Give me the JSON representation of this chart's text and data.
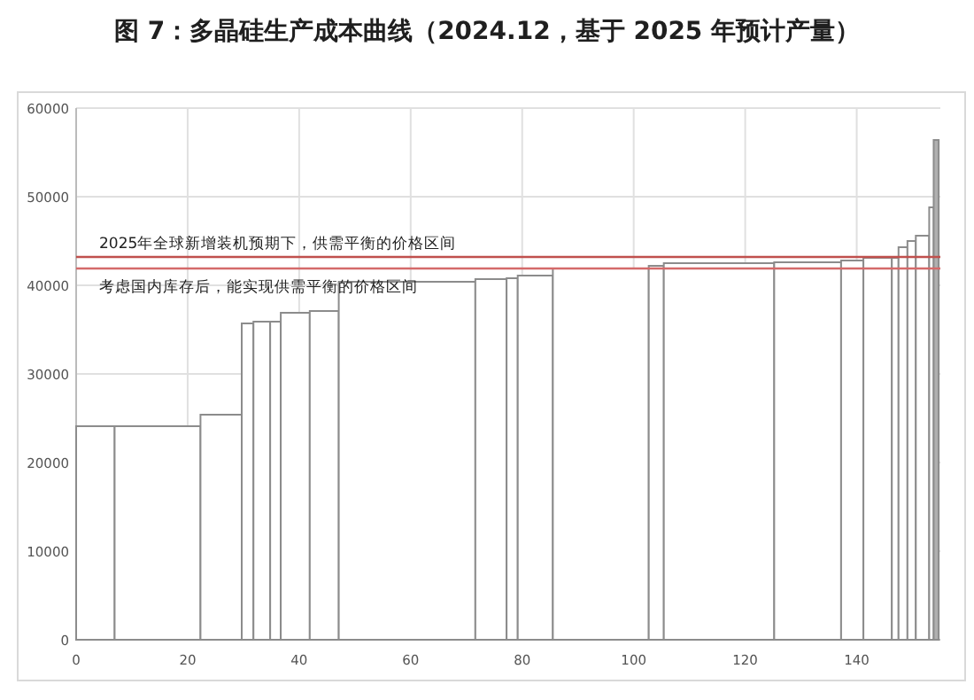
{
  "chart_data": {
    "type": "histogram",
    "title": "图 7：多晶硅生产成本曲线（2024.12，基于 2025 年预计产量）",
    "bins": [
      0,
      6.9,
      22.3,
      29.7,
      31.8,
      34.8,
      36.7,
      41.9,
      47.1,
      71.6,
      77.2,
      79.2,
      85.5,
      102.7,
      105.4,
      125.2,
      137.2,
      141.2,
      146.3,
      147.5,
      149.1,
      150.6,
      153.0,
      153.8,
      154.7
    ],
    "values": [
      24100,
      24100,
      25400,
      35700,
      35900,
      35900,
      36900,
      37100,
      40400,
      40700,
      40800,
      41100,
      41900,
      42200,
      42500,
      42600,
      42800,
      43100,
      43100,
      44300,
      45000,
      45600,
      48800,
      56400
    ],
    "colors": [
      "#ffffff",
      "#ffffff",
      "#ffffff",
      "#ffffff",
      "#ffffff",
      "#ffffff",
      "#ffffff",
      "#ffffff",
      "#ffffff",
      "#ffffff",
      "#ffffff",
      "#ffffff",
      "#ffffff",
      "#ffffff",
      "#ffffff",
      "#ffffff",
      "#ffffff",
      "#ffffff",
      "#ffffff",
      "#ffffff",
      "#ffffff",
      "#ffffff",
      "#ffffff",
      "#b0b0b0"
    ],
    "xlim": [
      0,
      155
    ],
    "ylim": [
      0,
      60000
    ],
    "xticks": [
      0,
      20,
      40,
      60,
      80,
      100,
      120,
      140
    ],
    "yticks": [
      0,
      10000,
      20000,
      30000,
      40000,
      50000,
      60000
    ],
    "grid": true,
    "ref_lines": [
      {
        "axis": "y",
        "value": 43200,
        "label": "2025年全球新增装机预期下，供需平衡的价格区间",
        "color": "#c0504d"
      },
      {
        "axis": "y",
        "value": 41900,
        "label": "考虑国内库存后，能实现供需平衡的价格区间",
        "color": "#d46a6a"
      }
    ]
  }
}
